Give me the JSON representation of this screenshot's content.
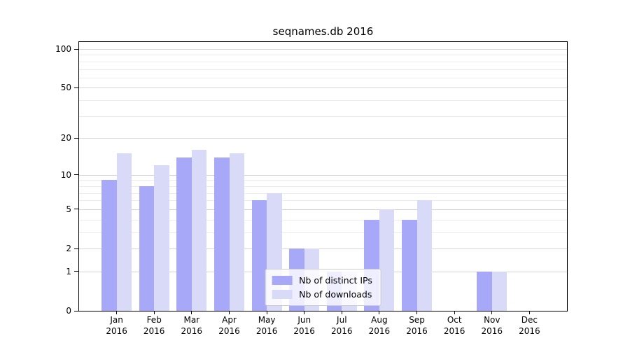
{
  "chart_data": {
    "type": "bar",
    "title": "seqnames.db 2016",
    "categories": [
      "Jan",
      "Feb",
      "Mar",
      "Apr",
      "May",
      "Jun",
      "Jul",
      "Aug",
      "Sep",
      "Oct",
      "Nov",
      "Dec"
    ],
    "category_year": "2016",
    "series": [
      {
        "name": "Nb of distinct IPs",
        "color": "#a8a8f8",
        "values": [
          9,
          8,
          14,
          14,
          6,
          2,
          1,
          4,
          4,
          0,
          1,
          0
        ]
      },
      {
        "name": "Nb of downloads",
        "color": "#d9d9f8",
        "values": [
          15,
          12,
          16,
          15,
          7,
          2,
          1,
          5,
          6,
          0,
          1,
          0
        ]
      }
    ],
    "y_axis": {
      "scale": "log10(1+v)",
      "ticks": [
        0,
        1,
        2,
        5,
        10,
        20,
        50,
        100
      ],
      "minor_ticks": [
        3,
        4,
        6,
        7,
        8,
        9,
        30,
        40,
        60,
        70,
        80,
        90
      ],
      "ylim": [
        0,
        113
      ]
    },
    "xlabel": "",
    "ylabel": "",
    "grid": true,
    "legend_position": "lower-center-inside"
  },
  "colors": {
    "background": "#ffffff",
    "axis": "#000000",
    "grid_major": "#d4d4d4",
    "grid_minor": "#ececec",
    "bar_distinct_ips": "#a8a8f8",
    "bar_downloads": "#d9d9f8"
  }
}
